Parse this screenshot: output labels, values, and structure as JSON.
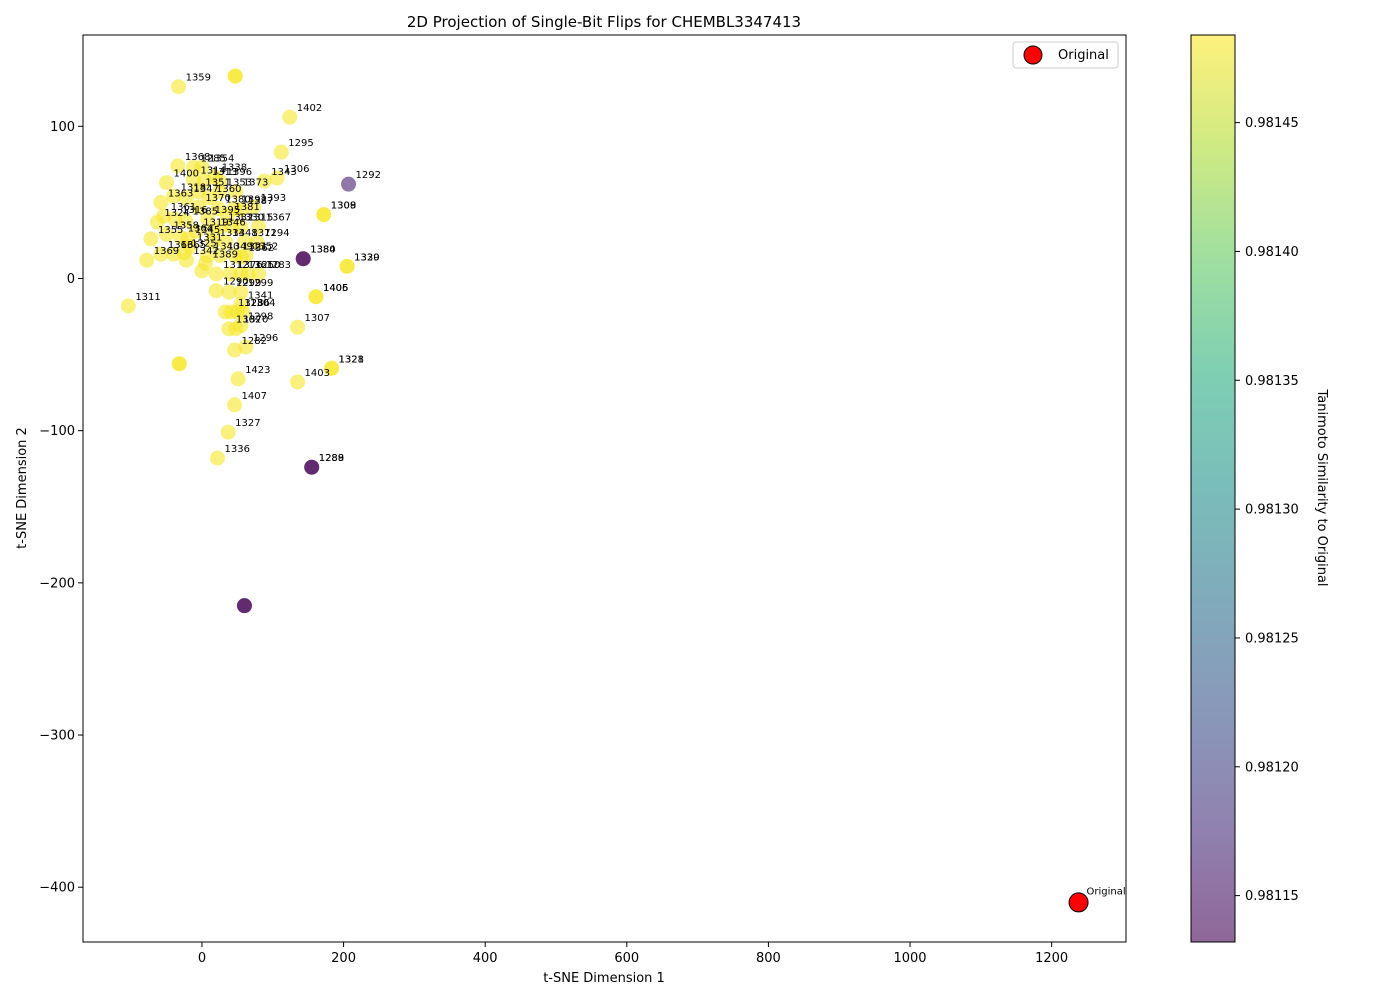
{
  "chart_data": {
    "type": "scatter",
    "title": "2D Projection of Single-Bit Flips for CHEMBL3347413",
    "xlabel": "t-SNE Dimension 1",
    "ylabel": "t-SNE Dimension 2",
    "xlim": [
      -168,
      1305
    ],
    "ylim": [
      -436,
      160
    ],
    "xticks": [
      0,
      200,
      400,
      600,
      800,
      1000,
      1200
    ],
    "yticks": [
      100,
      0,
      -100,
      -200,
      -300,
      -400
    ],
    "grid": false,
    "legend": {
      "position": "top-right",
      "entries": [
        "Original"
      ]
    },
    "colorbar": {
      "label": "Tanimoto Similarity to Original",
      "range": [
        0.981132,
        0.981484
      ],
      "ticks": [
        0.98115,
        0.9812,
        0.98125,
        0.9813,
        0.98135,
        0.9814,
        0.98145
      ],
      "colormap": "viridis",
      "alpha": 0.6
    },
    "original": {
      "x": 1238,
      "y": -410,
      "label": "Original",
      "color": "#ff0000"
    },
    "points": [
      {
        "x": 47,
        "y": 133,
        "v": 0.98148,
        "label": ""
      },
      {
        "x": 47,
        "y": 133,
        "v": 0.98148,
        "label": ""
      },
      {
        "x": -33,
        "y": 126,
        "v": 0.98148,
        "label": "1359"
      },
      {
        "x": 124,
        "y": 106,
        "v": 0.98148,
        "label": "1402"
      },
      {
        "x": 112,
        "y": 83,
        "v": 0.98148,
        "label": "1295"
      },
      {
        "x": 207,
        "y": 62,
        "v": 0.98116,
        "label": "1292"
      },
      {
        "x": -34,
        "y": 74,
        "v": 0.98148,
        "label": "1368"
      },
      {
        "x": -12,
        "y": 73,
        "v": 0.98148,
        "label": "1285"
      },
      {
        "x": 0,
        "y": 73,
        "v": 0.98148,
        "label": "1354"
      },
      {
        "x": 18,
        "y": 67,
        "v": 0.98148,
        "label": "1338"
      },
      {
        "x": -50,
        "y": 63,
        "v": 0.98148,
        "label": "1400"
      },
      {
        "x": -12,
        "y": 65,
        "v": 0.98148,
        "label": "1314"
      },
      {
        "x": 4,
        "y": 64,
        "v": 0.98148,
        "label": "1313"
      },
      {
        "x": 25,
        "y": 64,
        "v": 0.98148,
        "label": "1396"
      },
      {
        "x": 88,
        "y": 64,
        "v": 0.98148,
        "label": "1343"
      },
      {
        "x": 106,
        "y": 66,
        "v": 0.98148,
        "label": "1306"
      },
      {
        "x": -5,
        "y": 57,
        "v": 0.98148,
        "label": "1351"
      },
      {
        "x": 25,
        "y": 57,
        "v": 0.98148,
        "label": "1353"
      },
      {
        "x": 48,
        "y": 57,
        "v": 0.98148,
        "label": "1373"
      },
      {
        "x": -40,
        "y": 54,
        "v": 0.98148,
        "label": "1318"
      },
      {
        "x": -22,
        "y": 53,
        "v": 0.98148,
        "label": "1347"
      },
      {
        "x": 10,
        "y": 53,
        "v": 0.98148,
        "label": "1360"
      },
      {
        "x": 172,
        "y": 42,
        "v": 0.98148,
        "label": "1308"
      },
      {
        "x": 172,
        "y": 42,
        "v": 0.98148,
        "label": "1309"
      },
      {
        "x": -58,
        "y": 50,
        "v": 0.98148,
        "label": "1363"
      },
      {
        "x": -5,
        "y": 47,
        "v": 0.98148,
        "label": "1370"
      },
      {
        "x": 23,
        "y": 46,
        "v": 0.98148,
        "label": "1380"
      },
      {
        "x": 46,
        "y": 46,
        "v": 0.98148,
        "label": "1392"
      },
      {
        "x": 73,
        "y": 47,
        "v": 0.98148,
        "label": "1393"
      },
      {
        "x": 55,
        "y": 45,
        "v": 0.98148,
        "label": "1387"
      },
      {
        "x": 36,
        "y": 41,
        "v": 0.98148,
        "label": "1381"
      },
      {
        "x": -54,
        "y": 41,
        "v": 0.98148,
        "label": "1361"
      },
      {
        "x": -38,
        "y": 39,
        "v": 0.98148,
        "label": "1316"
      },
      {
        "x": -23,
        "y": 38,
        "v": 0.98148,
        "label": "1385"
      },
      {
        "x": 8,
        "y": 39,
        "v": 0.98148,
        "label": "1395"
      },
      {
        "x": -63,
        "y": 37,
        "v": 0.98148,
        "label": "1324"
      },
      {
        "x": 27,
        "y": 34,
        "v": 0.98148,
        "label": "1332"
      },
      {
        "x": 42,
        "y": 34,
        "v": 0.98148,
        "label": "1330"
      },
      {
        "x": 55,
        "y": 34,
        "v": 0.98148,
        "label": "1315"
      },
      {
        "x": 80,
        "y": 34,
        "v": 0.98148,
        "label": "1367"
      },
      {
        "x": -8,
        "y": 31,
        "v": 0.98148,
        "label": "1319"
      },
      {
        "x": 16,
        "y": 31,
        "v": 0.98148,
        "label": "1346"
      },
      {
        "x": -50,
        "y": 29,
        "v": 0.98148,
        "label": "1358"
      },
      {
        "x": -30,
        "y": 27,
        "v": 0.98148,
        "label": "1364"
      },
      {
        "x": -20,
        "y": 26,
        "v": 0.98148,
        "label": "1345"
      },
      {
        "x": 15,
        "y": 24,
        "v": 0.98148,
        "label": "1334"
      },
      {
        "x": 33,
        "y": 24,
        "v": 0.98148,
        "label": "1348"
      },
      {
        "x": 60,
        "y": 24,
        "v": 0.98148,
        "label": "1371"
      },
      {
        "x": 78,
        "y": 24,
        "v": 0.98148,
        "label": "1294"
      },
      {
        "x": -72,
        "y": 26,
        "v": 0.98148,
        "label": "1355"
      },
      {
        "x": -17,
        "y": 21,
        "v": 0.98148,
        "label": "1331"
      },
      {
        "x": 143,
        "y": 13,
        "v": 0.98113,
        "label": "1380"
      },
      {
        "x": 143,
        "y": 13,
        "v": 0.98113,
        "label": "1384"
      },
      {
        "x": -58,
        "y": 16,
        "v": 0.98148,
        "label": "1366"
      },
      {
        "x": -40,
        "y": 16,
        "v": 0.98148,
        "label": "1365"
      },
      {
        "x": -25,
        "y": 17,
        "v": 0.98148,
        "label": "1325"
      },
      {
        "x": 7,
        "y": 15,
        "v": 0.98148,
        "label": "1340"
      },
      {
        "x": 26,
        "y": 15,
        "v": 0.98148,
        "label": "1349"
      },
      {
        "x": 47,
        "y": 15,
        "v": 0.98148,
        "label": "1321"
      },
      {
        "x": 62,
        "y": 15,
        "v": 0.98148,
        "label": "1352"
      },
      {
        "x": 56,
        "y": 14,
        "v": 0.98148,
        "label": "1362"
      },
      {
        "x": 205,
        "y": 8,
        "v": 0.98148,
        "label": "1320"
      },
      {
        "x": 205,
        "y": 8,
        "v": 0.98148,
        "label": "1339"
      },
      {
        "x": -78,
        "y": 12,
        "v": 0.98148,
        "label": "1369"
      },
      {
        "x": -22,
        "y": 12,
        "v": 0.98148,
        "label": "1342"
      },
      {
        "x": 5,
        "y": 10,
        "v": 0.98148,
        "label": "1389"
      },
      {
        "x": 20,
        "y": 3,
        "v": 0.98148,
        "label": "1312"
      },
      {
        "x": 40,
        "y": 3,
        "v": 0.98148,
        "label": "1376"
      },
      {
        "x": 55,
        "y": 3,
        "v": 0.98148,
        "label": "1361"
      },
      {
        "x": 65,
        "y": 3,
        "v": 0.98148,
        "label": "1250"
      },
      {
        "x": 80,
        "y": 3,
        "v": 0.98148,
        "label": "1283"
      },
      {
        "x": 0,
        "y": 5,
        "v": 0.98148,
        "label": ""
      },
      {
        "x": 161,
        "y": -12,
        "v": 0.98148,
        "label": "1405"
      },
      {
        "x": 161,
        "y": -12,
        "v": 0.98148,
        "label": "1406"
      },
      {
        "x": 20,
        "y": -8,
        "v": 0.98148,
        "label": "1290"
      },
      {
        "x": 38,
        "y": -9,
        "v": 0.98148,
        "label": "1299"
      },
      {
        "x": 55,
        "y": -9,
        "v": 0.98148,
        "label": "1299"
      },
      {
        "x": 55,
        "y": -17,
        "v": 0.98148,
        "label": "1341"
      },
      {
        "x": -104,
        "y": -18,
        "v": 0.98148,
        "label": "1311"
      },
      {
        "x": 41,
        "y": -22,
        "v": 0.98148,
        "label": "1328"
      },
      {
        "x": 50,
        "y": -22,
        "v": 0.98148,
        "label": "1286"
      },
      {
        "x": 58,
        "y": -22,
        "v": 0.98148,
        "label": "1304"
      },
      {
        "x": 33,
        "y": -22,
        "v": 0.98148,
        "label": ""
      },
      {
        "x": 135,
        "y": -32,
        "v": 0.98148,
        "label": "1307"
      },
      {
        "x": 55,
        "y": -31,
        "v": 0.98148,
        "label": "1298"
      },
      {
        "x": 38,
        "y": -33,
        "v": 0.98148,
        "label": "1302"
      },
      {
        "x": 48,
        "y": -33,
        "v": 0.98148,
        "label": "1370"
      },
      {
        "x": 183,
        "y": -59,
        "v": 0.98148,
        "label": "1321"
      },
      {
        "x": 183,
        "y": -59,
        "v": 0.98148,
        "label": "1328"
      },
      {
        "x": -32,
        "y": -56,
        "v": 0.98148,
        "label": ""
      },
      {
        "x": -32,
        "y": -56,
        "v": 0.98148,
        "label": ""
      },
      {
        "x": 46,
        "y": -47,
        "v": 0.98148,
        "label": "1282"
      },
      {
        "x": 62,
        "y": -45,
        "v": 0.98148,
        "label": "1296"
      },
      {
        "x": 51,
        "y": -66,
        "v": 0.98148,
        "label": "1423"
      },
      {
        "x": 135,
        "y": -68,
        "v": 0.98148,
        "label": "1403"
      },
      {
        "x": 46,
        "y": -83,
        "v": 0.98148,
        "label": "1407"
      },
      {
        "x": 37,
        "y": -101,
        "v": 0.98148,
        "label": "1327"
      },
      {
        "x": 22,
        "y": -118,
        "v": 0.98148,
        "label": "1336"
      },
      {
        "x": 155,
        "y": -124,
        "v": 0.98113,
        "label": "1288"
      },
      {
        "x": 155,
        "y": -124,
        "v": 0.98113,
        "label": "1289"
      },
      {
        "x": 60,
        "y": -215,
        "v": 0.98113,
        "label": ""
      },
      {
        "x": 60,
        "y": -215,
        "v": 0.98113,
        "label": ""
      }
    ]
  }
}
